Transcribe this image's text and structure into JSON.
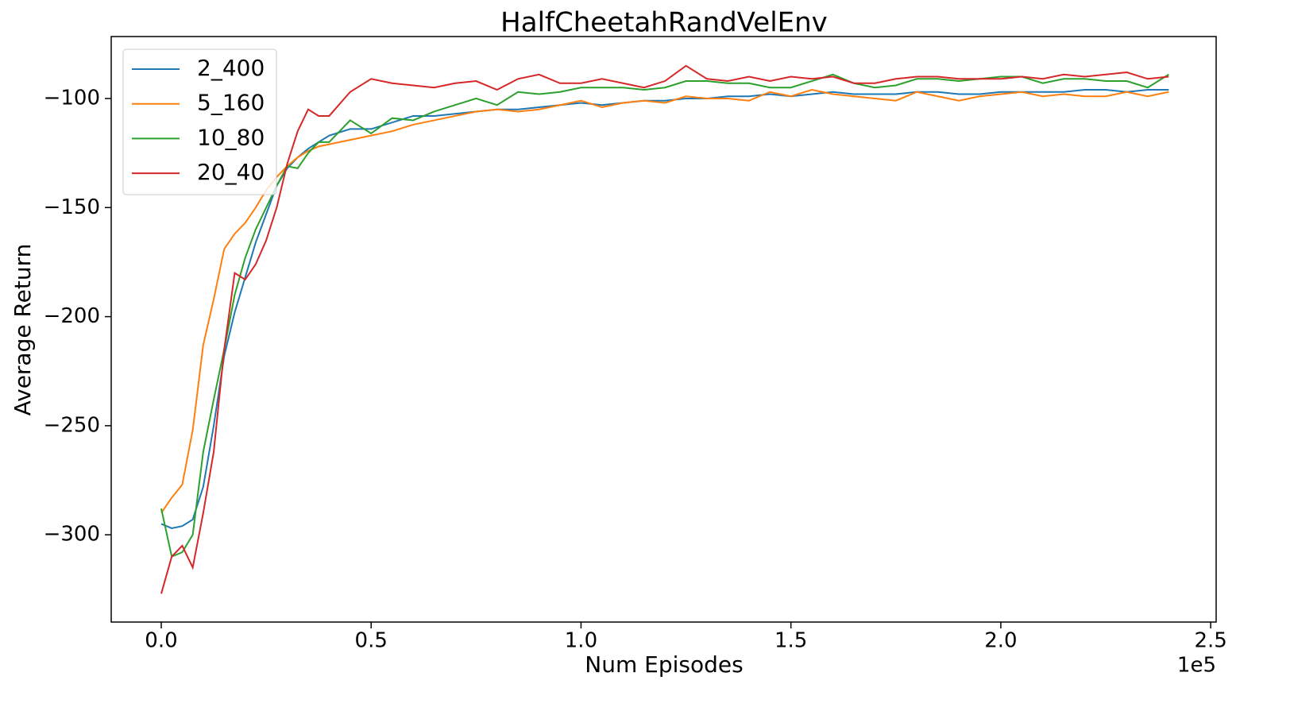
{
  "chart_data": {
    "type": "line",
    "title": "HalfCheetahRandVelEnv",
    "x_label": "Num Episodes",
    "y_label": "Average Return",
    "x_offset_label": "1e5",
    "legend": "upper left",
    "x": [
      0,
      2500,
      5000,
      7500,
      10000,
      12500,
      15000,
      17500,
      20000,
      22500,
      25000,
      27500,
      30000,
      32500,
      35000,
      37500,
      40000,
      45000,
      50000,
      55000,
      60000,
      65000,
      70000,
      75000,
      80000,
      85000,
      90000,
      95000,
      100000,
      105000,
      110000,
      115000,
      120000,
      125000,
      130000,
      135000,
      140000,
      145000,
      150000,
      155000,
      160000,
      165000,
      170000,
      175000,
      180000,
      185000,
      190000,
      195000,
      200000,
      205000,
      210000,
      215000,
      220000,
      225000,
      230000,
      235000,
      240000
    ],
    "series": [
      {
        "name": "2_400",
        "color": "#1f77b4",
        "values": [
          -295,
          -297,
          -296,
          -293,
          -278,
          -250,
          -218,
          -198,
          -182,
          -166,
          -153,
          -140,
          -132,
          -127,
          -123,
          -120,
          -117,
          -114,
          -114,
          -111,
          -108,
          -108,
          -107,
          -106,
          -105,
          -105,
          -104,
          -103,
          -102,
          -103,
          -102,
          -101,
          -101,
          -100,
          -100,
          -99,
          -99,
          -98,
          -99,
          -98,
          -97,
          -98,
          -98,
          -98,
          -97,
          -97,
          -98,
          -98,
          -97,
          -97,
          -97,
          -97,
          -96,
          -96,
          -97,
          -96,
          -96
        ]
      },
      {
        "name": "5_160",
        "color": "#ff7f0e",
        "values": [
          -290,
          -283,
          -277,
          -252,
          -213,
          -192,
          -169,
          -162,
          -157,
          -150,
          -142,
          -136,
          -131,
          -127,
          -124,
          -122,
          -121,
          -119,
          -117,
          -115,
          -112,
          -110,
          -108,
          -106,
          -105,
          -106,
          -105,
          -103,
          -101,
          -104,
          -102,
          -101,
          -102,
          -99,
          -100,
          -100,
          -101,
          -97,
          -99,
          -96,
          -98,
          -99,
          -100,
          -101,
          -97,
          -99,
          -101,
          -99,
          -98,
          -97,
          -99,
          -98,
          -99,
          -99,
          -97,
          -99,
          -97
        ]
      },
      {
        "name": "10_80",
        "color": "#2ca02c",
        "values": [
          -288,
          -310,
          -308,
          -300,
          -262,
          -238,
          -215,
          -190,
          -173,
          -160,
          -150,
          -140,
          -131,
          -132,
          -125,
          -120,
          -120,
          -110,
          -116,
          -109,
          -110,
          -106,
          -103,
          -100,
          -103,
          -97,
          -98,
          -97,
          -95,
          -95,
          -95,
          -96,
          -95,
          -92,
          -92,
          -93,
          -93,
          -95,
          -95,
          -92,
          -89,
          -93,
          -95,
          -94,
          -91,
          -91,
          -92,
          -91,
          -90,
          -90,
          -93,
          -91,
          -91,
          -92,
          -92,
          -95,
          -89
        ]
      },
      {
        "name": "20_40",
        "color": "#d62728",
        "values": [
          -327,
          -310,
          -305,
          -315,
          -290,
          -262,
          -215,
          -180,
          -183,
          -176,
          -165,
          -150,
          -130,
          -115,
          -105,
          -108,
          -108,
          -97,
          -91,
          -93,
          -94,
          -95,
          -93,
          -92,
          -96,
          -91,
          -89,
          -93,
          -93,
          -91,
          -93,
          -95,
          -92,
          -85,
          -91,
          -92,
          -90,
          -92,
          -90,
          -91,
          -90,
          -93,
          -93,
          -91,
          -90,
          -90,
          -91,
          -91,
          -91,
          -90,
          -91,
          -89,
          -90,
          -89,
          -88,
          -91,
          -90
        ]
      }
    ],
    "xlim": [
      -11920,
      251300
    ],
    "xticks": [
      {
        "value": 0,
        "label": "0.0"
      },
      {
        "value": 50000,
        "label": "0.5"
      },
      {
        "value": 100000,
        "label": "1.0"
      },
      {
        "value": 150000,
        "label": "1.5"
      },
      {
        "value": 200000,
        "label": "2.0"
      },
      {
        "value": 250000,
        "label": "2.5"
      }
    ],
    "ylim": [
      -340,
      -71.6
    ],
    "yticks": [
      {
        "value": -300,
        "label": "−300"
      },
      {
        "value": -250,
        "label": "−250"
      },
      {
        "value": -200,
        "label": "−200"
      },
      {
        "value": -150,
        "label": "−150"
      },
      {
        "value": -100,
        "label": "−100"
      }
    ],
    "grid": false
  }
}
